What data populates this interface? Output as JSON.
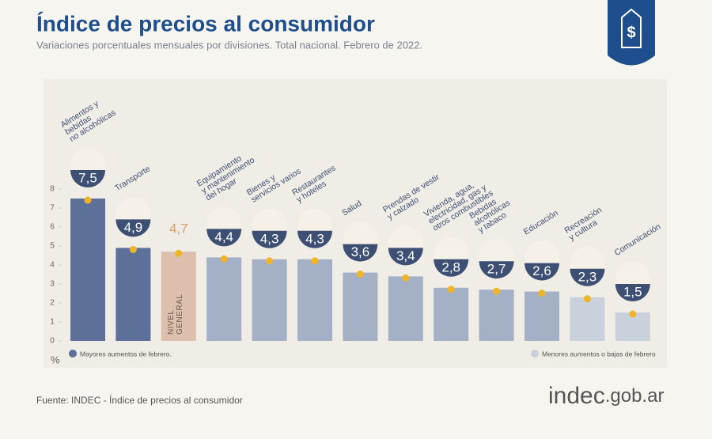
{
  "chart_data": {
    "type": "bar",
    "title": "Índice de precios al consumidor",
    "subtitle": "Variaciones porcentuales mensuales por divisiones. Total nacional. Febrero de 2022.",
    "y_label": "%",
    "categories": [
      [
        "Alimentos y",
        "bebidas",
        "no alcohólicas"
      ],
      [
        "Transporte"
      ],
      [
        "NIVEL",
        "GENERAL"
      ],
      [
        "Equipamiento",
        "y mantenimiento",
        "del hogar"
      ],
      [
        "Bienes y",
        "servicios varios"
      ],
      [
        "Restaurantes",
        "y hoteles"
      ],
      [
        "Salud"
      ],
      [
        "Prendas de vestir",
        "y calzado"
      ],
      [
        "Vivienda, agua,",
        "electricidad, gas y",
        "otros combustibles"
      ],
      [
        "Bebidas",
        "alcohólicas",
        "y tabaco"
      ],
      [
        "Educación"
      ],
      [
        "Recreación",
        "y cultura"
      ],
      [
        "Comunicación"
      ]
    ],
    "values": [
      7.5,
      4.9,
      4.7,
      4.4,
      4.3,
      4.3,
      3.6,
      3.4,
      2.8,
      2.7,
      2.6,
      2.3,
      1.5
    ],
    "value_labels": [
      "7,5",
      "4,9",
      "4,7",
      "4,4",
      "4,3",
      "4,3",
      "3,6",
      "3,4",
      "2,8",
      "2,7",
      "2,6",
      "2,3",
      "1,5"
    ],
    "colors": [
      "#5c7099",
      "#5c7099",
      "#dcc0ad",
      "#a3b0c6",
      "#a3b0c6",
      "#a3b0c6",
      "#a3b0c6",
      "#a3b0c6",
      "#a3b0c6",
      "#a3b0c6",
      "#a3b0c6",
      "#c9d1dc",
      "#c9d1dc"
    ],
    "value_label_colors": [
      "#ffffff",
      "#ffffff",
      "#d9a066",
      "#ffffff",
      "#ffffff",
      "#ffffff",
      "#ffffff",
      "#ffffff",
      "#ffffff",
      "#ffffff",
      "#ffffff",
      "#ffffff",
      "#ffffff"
    ],
    "label_positions": [
      "above",
      "above",
      "inside",
      "above",
      "above",
      "above",
      "above",
      "above",
      "above",
      "above",
      "above",
      "above",
      "above"
    ],
    "ylim": [
      0,
      8
    ],
    "yticks": [
      0,
      1,
      2,
      3,
      4,
      5,
      6,
      7,
      8
    ],
    "legend": [
      {
        "name": "Mayores aumentos de febrero.",
        "color": "#5c7099"
      },
      {
        "name": "Menores aumentos o bajas de febrero",
        "color": "#c9d1dc"
      }
    ],
    "source": "Fuente: INDEC - Índice de precios al consumidor",
    "brand": "indec",
    "domain": ".gob.ar"
  }
}
